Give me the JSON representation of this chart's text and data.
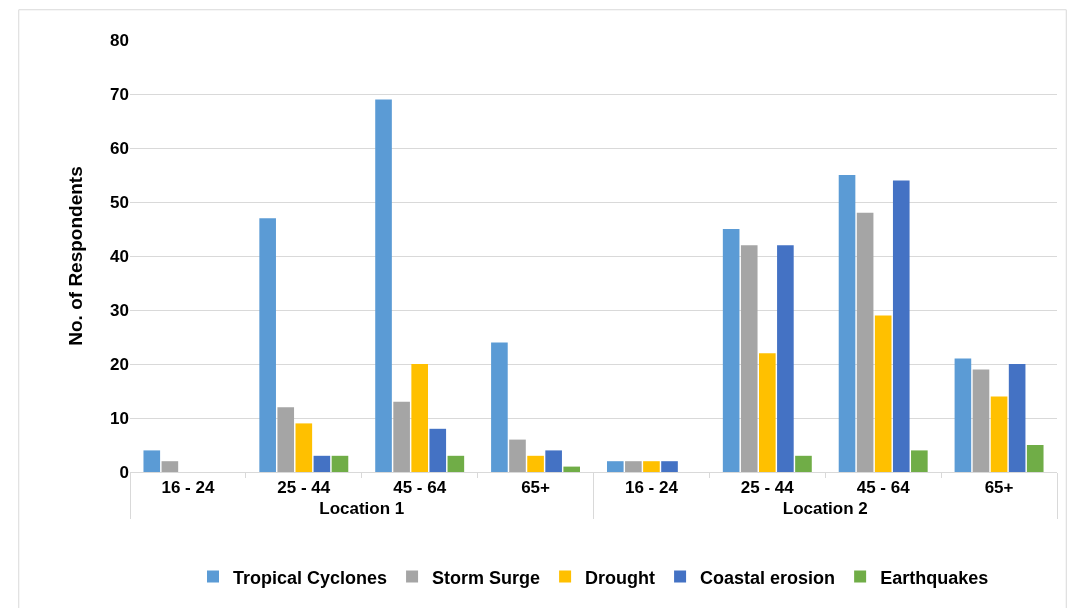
{
  "chart_data": {
    "type": "bar",
    "ylabel": "No. of Respondents",
    "categories": [
      "16 - 24",
      "25 - 44",
      "45 - 64",
      "65+",
      "16 - 24",
      "25 - 44",
      "45 - 64",
      "65+"
    ],
    "annotations": [
      "Location 1",
      "Location 2"
    ],
    "series": [
      {
        "name": "Tropical Cyclones",
        "color": "#5b9bd5",
        "values": [
          4,
          47,
          69,
          24,
          2,
          45,
          55,
          21
        ]
      },
      {
        "name": "Storm Surge",
        "color": "#a5a5a5",
        "values": [
          2,
          12,
          13,
          6,
          2,
          42,
          48,
          19
        ]
      },
      {
        "name": "Drought",
        "color": "#ffc000",
        "values": [
          0,
          9,
          20,
          3,
          2,
          22,
          29,
          14
        ]
      },
      {
        "name": "Coastal erosion",
        "color": "#4472c4",
        "values": [
          0,
          3,
          8,
          4,
          2,
          42,
          54,
          20
        ]
      },
      {
        "name": "Earthquakes",
        "color": "#70ad47",
        "values": [
          0,
          3,
          3,
          1,
          0,
          3,
          4,
          5
        ]
      }
    ],
    "ylim": [
      0,
      80
    ],
    "yticks": [
      0,
      10,
      20,
      30,
      40,
      50,
      60,
      70,
      80
    ],
    "grid": "y",
    "legend": "bottom"
  }
}
